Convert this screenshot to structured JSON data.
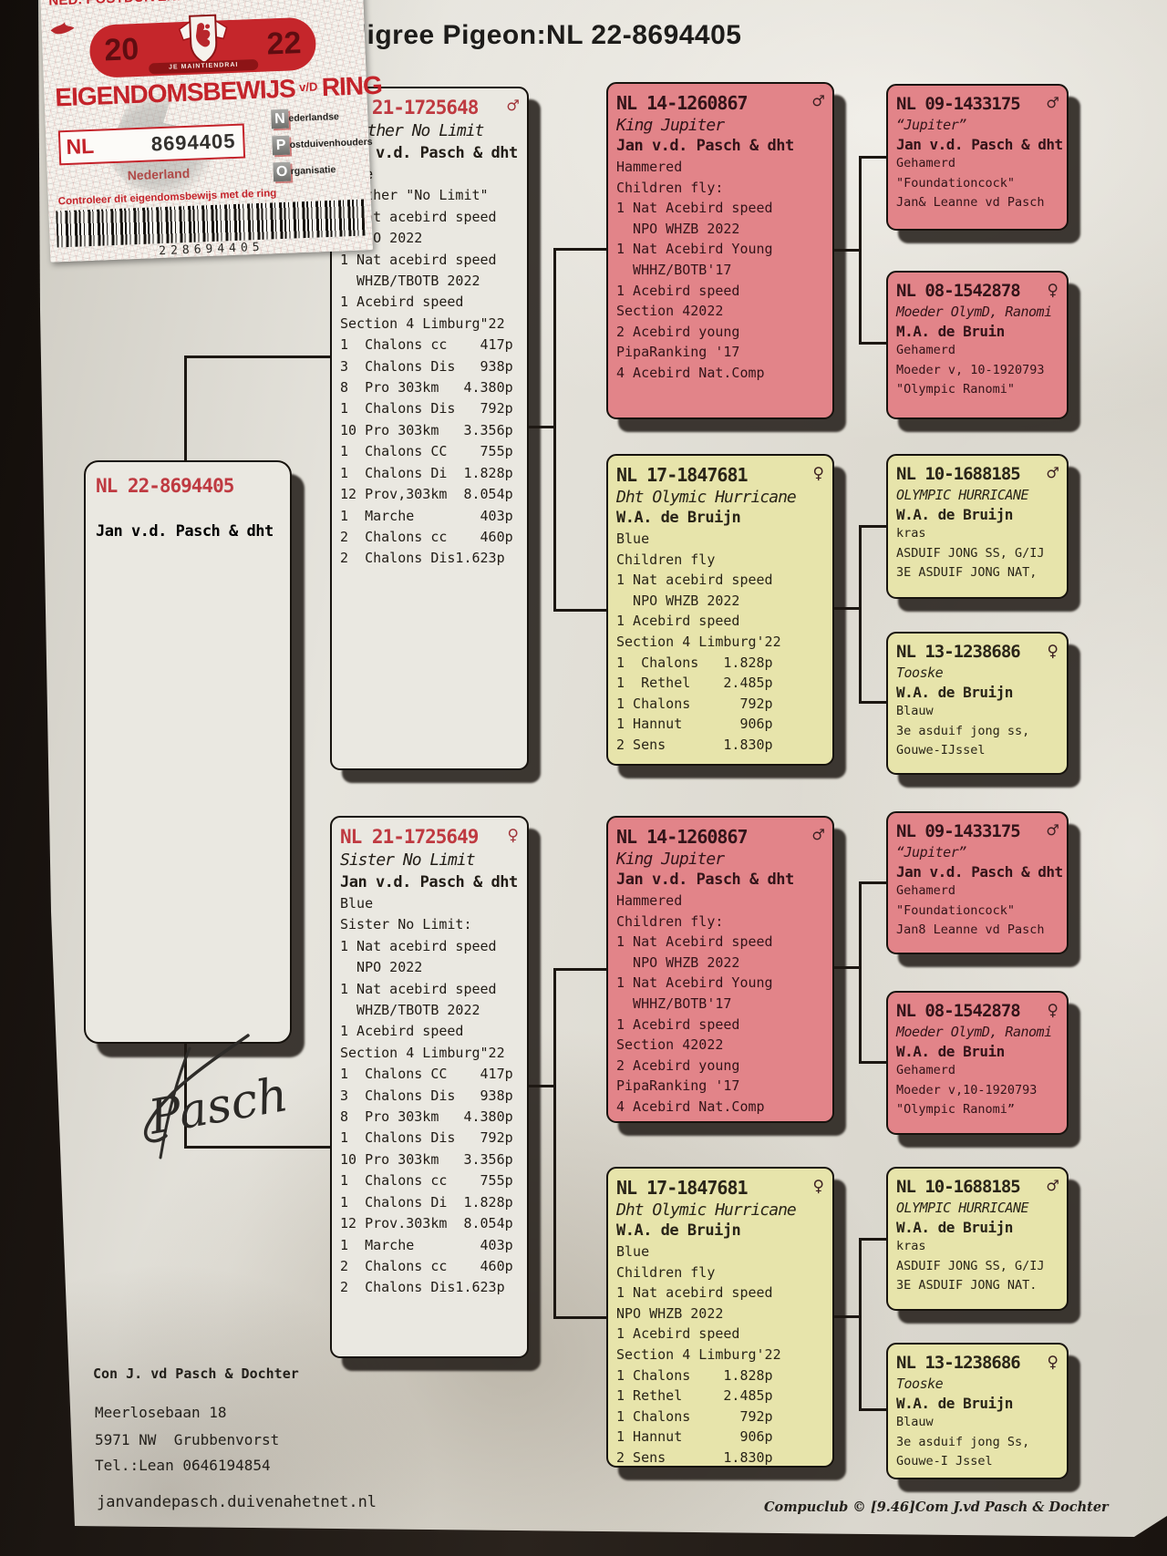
{
  "title": "Pedigree Pigeon:NL 22-8694405",
  "colors": {
    "pink_box": "#e28489",
    "yellow_box": "#e7e4ab",
    "ring_red": "#bf3a41",
    "sticker_red": "#c4232a"
  },
  "sticker": {
    "org_line": "NED. POSTDUIVENHOUDERS ORGANISATIE",
    "year_left": "20",
    "year_right": "22",
    "motto": "JE MAINTIENDRAI",
    "doc_title_main": "EIGENDOMSBEWIJS",
    "doc_title_small": "v/D",
    "doc_title_end": "RING",
    "country_code": "NL",
    "ring_number": "8694405",
    "country_label": "Nederland",
    "npo_n_letter": "N",
    "npo_n_word": "ederlandse",
    "npo_p_letter": "P",
    "npo_p_word": "ostduivenhouders",
    "npo_o_letter": "O",
    "npo_o_word": "rganisatie",
    "control_line": "Controleer dit eigendomsbewijs met de ring",
    "barcode_number": "228694405"
  },
  "subject": {
    "ring": "NL 22-8694405",
    "sex": "",
    "owner": "Jan v.d. Pasch & dht"
  },
  "boxes": {
    "b2a": {
      "ring": "NL 21-1725648",
      "sex": "♂",
      "name": "Brother No Limit",
      "owner": "Jan v.d. Pasch & dht",
      "lines": [
        "Blue",
        "Brother \"No Limit\"",
        "1 Nat acebird speed",
        "  NPO 2022",
        "1 Nat acebird speed",
        "  WHZB/TBOTB 2022",
        "1 Acebird speed",
        "Section 4 Limburg\"22",
        "1  Chalons cc    417p",
        "3  Chalons Dis   938p",
        "8  Pro 303km   4.380p",
        "1  Chalons Dis   792p",
        "10 Pro 303km   3.356p",
        "1  Chalons CC    755p",
        "1  Chalons Di  1.828p",
        "12 Prov,303km  8.054p",
        "1  Marche        403p",
        "2  Chalons cc    460p",
        "2  Chalons Dis1.623p"
      ]
    },
    "b2b": {
      "ring": "NL 21-1725649",
      "sex": "♀",
      "name": "Sister No Limit",
      "owner": "Jan v.d. Pasch & dht",
      "lines": [
        "Blue",
        "Sister No Limit:",
        "1 Nat acebird speed",
        "  NPO 2022",
        "1 Nat acebird speed",
        "  WHZB/TBOTB 2022",
        "1 Acebird speed",
        "Section 4 Limburg\"22",
        "1  Chalons CC    417p",
        "3  Chalons Dis   938p",
        "8  Pro 303km   4.380p",
        "1  Chalons Dis   792p",
        "10 Pro 303km   3.356p",
        "1  Chalons cc    755p",
        "1  Chalons Di  1.828p",
        "12 Prov.303km  8.054p",
        "1  Marche        403p",
        "2  Chalons cc    460p",
        "2  Chalons Dis1.623p"
      ]
    },
    "b3a": {
      "ring": "NL 14-1260867",
      "sex": "♂",
      "name": "King Jupiter",
      "owner": "Jan v.d. Pasch & dht",
      "lines": [
        "Hammered",
        "Children fly:",
        "1 Nat Acebird speed",
        "  NPO WHZB 2022",
        "1 Nat Acebird Young",
        "  WHHZ/BOTB'17",
        "1 Acebird speed",
        "Section 42022",
        "2 Acebird young",
        "PipaRanking '17",
        "4 Acebird Nat.Comp"
      ]
    },
    "b3b": {
      "ring": "NL 17-1847681",
      "sex": "♀",
      "name": "Dht Olymic Hurricane",
      "owner": "W.A. de Bruijn",
      "lines": [
        "Blue",
        "Children fly",
        "1 Nat acebird speed",
        "  NPO WHZB 2022",
        "1 Acebird speed",
        "Section 4 Limburg'22",
        "1  Chalons   1.828p",
        "1  Rethel    2.485p",
        "1 Chalons      792p",
        "1 Hannut       906p",
        "2 Sens       1.830p"
      ]
    },
    "b3c": {
      "ring": "NL 14-1260867",
      "sex": "♂",
      "name": "King Jupiter",
      "owner": "Jan v.d. Pasch & dht",
      "lines": [
        "Hammered",
        "Children fly:",
        "1 Nat Acebird speed",
        "  NPO WHZB 2022",
        "1 Nat Acebird Young",
        "  WHHZ/BOTB'17",
        "1 Acebird speed",
        "Section 42022",
        "2 Acebird young",
        "PipaRanking '17",
        "4 Acebird Nat.Comp"
      ]
    },
    "b3d": {
      "ring": "NL 17-1847681",
      "sex": "♀",
      "name": "Dht Olymic Hurricane",
      "owner": "W.A. de Bruijn",
      "lines": [
        "Blue",
        "Children fly",
        "1 Nat acebird speed",
        "NPO WHZB 2022",
        "1 Acebird speed",
        "Section 4 Limburg'22",
        "1 Chalons    1.828p",
        "1 Rethel     2.485p",
        "1 Chalons      792p",
        "1 Hannut       906p",
        "2 Sens       1.830p"
      ]
    },
    "b4a": {
      "ring": "NL 09-1433175",
      "sex": "♂",
      "name": "“Jupiter”",
      "owner": "Jan v.d. Pasch & dht",
      "lines": [
        "Gehamerd",
        "\"Foundationcock\"",
        "Jan& Leanne vd Pasch"
      ]
    },
    "b4b": {
      "ring": "NL 08-1542878",
      "sex": "♀",
      "name": "Moeder OlymD, Ranomi",
      "owner": "M.A. de Bruin",
      "lines": [
        "Gehamerd",
        "Moeder v, 10-1920793",
        "\"Olympic Ranomi\""
      ]
    },
    "b4c": {
      "ring": "NL 10-1688185",
      "sex": "♂",
      "name": "OLYMPIC HURRICANE",
      "owner": "W.A. de Bruijn",
      "lines": [
        "kras",
        "ASDUIF JONG SS, G/IJ",
        "3E ASDUIF JONG NAT,"
      ]
    },
    "b4d": {
      "ring": "NL 13-1238686",
      "sex": "♀",
      "name": "Tooske",
      "owner": "W.A. de Bruijn",
      "lines": [
        "Blauw",
        "3e asduif jong ss,",
        "Gouwe-IJssel"
      ]
    },
    "b4a2": {
      "ring": "NL 09-1433175",
      "sex": "♂",
      "name": "“Jupiter”",
      "owner": "Jan v.d. Pasch & dht",
      "lines": [
        "Gehamerd",
        "\"Foundationcock\"",
        "Jan8 Leanne vd Pasch"
      ]
    },
    "b4b2": {
      "ring": "NL 08-1542878",
      "sex": "♀",
      "name": "Moeder OlymD, Ranomi",
      "owner": "W.A. de Bruin",
      "lines": [
        "Gehamerd",
        "Moeder v,10-1920793",
        "\"Olympic Ranomi”"
      ]
    },
    "b4c2": {
      "ring": "NL 10-1688185",
      "sex": "♂",
      "name": "OLYMPIC HURRICANE",
      "owner": "W.A. de Bruijn",
      "lines": [
        "kras",
        "ASDUIF JONG SS, G/IJ",
        "3E ASDUIF JONG NAT."
      ]
    },
    "b4d2": {
      "ring": "NL 13-1238686",
      "sex": "♀",
      "name": "Tooske",
      "owner": "W.A. de Bruijn",
      "lines": [
        "Blauw",
        "3e asduif jong Ss,",
        "Gouwe-I Jssel"
      ]
    }
  },
  "signature": "Pasch",
  "footer": {
    "breeder": "Con J. vd Pasch & Dochter",
    "address1": "Meerlosebaan 18",
    "address2": "5971 NW  Grubbenvorst",
    "phone": "Tel.:Lean 0646194854",
    "website": "janvandepasch.duivenahetnet.nl",
    "compuclub": "Compuclub © [9.46]Com J.vd Pasch & Dochter"
  }
}
